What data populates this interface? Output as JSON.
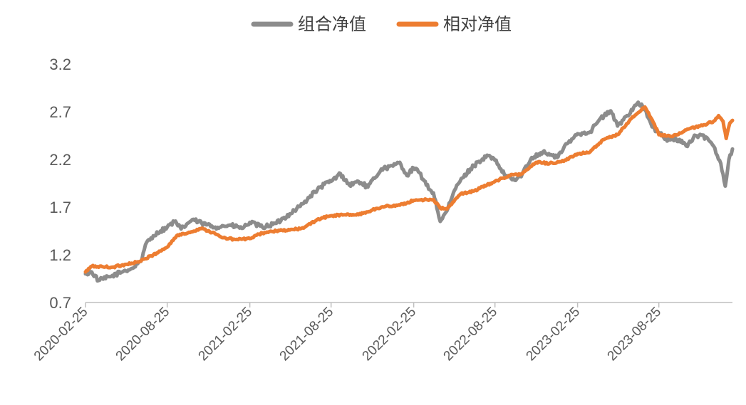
{
  "chart_data": {
    "type": "line",
    "title": "",
    "xlabel": "",
    "ylabel": "",
    "x_ticks": [
      "2020-02-25",
      "2020-08-25",
      "2021-02-25",
      "2021-08-25",
      "2022-02-25",
      "2022-08-25",
      "2023-02-25",
      "2023-08-25"
    ],
    "x_range": [
      "2020-02-25",
      "2024-02-05"
    ],
    "y_ticks": [
      "0.7",
      "1.2",
      "1.7",
      "2.2",
      "2.7",
      "3.2"
    ],
    "ylim": [
      0.7,
      3.2
    ],
    "grid": false,
    "legend_position": "top-center",
    "series": [
      {
        "name": "组合净值",
        "color": "#8c8c8c",
        "points": [
          [
            "2020-02-25",
            1.0
          ],
          [
            "2020-03-10",
            1.02
          ],
          [
            "2020-03-25",
            0.93
          ],
          [
            "2020-04-20",
            0.97
          ],
          [
            "2020-05-20",
            1.03
          ],
          [
            "2020-06-10",
            1.06
          ],
          [
            "2020-06-30",
            1.16
          ],
          [
            "2020-07-10",
            1.33
          ],
          [
            "2020-07-25",
            1.4
          ],
          [
            "2020-08-10",
            1.45
          ],
          [
            "2020-08-25",
            1.49
          ],
          [
            "2020-09-10",
            1.55
          ],
          [
            "2020-09-25",
            1.47
          ],
          [
            "2020-10-20",
            1.57
          ],
          [
            "2020-11-10",
            1.53
          ],
          [
            "2020-12-10",
            1.49
          ],
          [
            "2021-01-10",
            1.51
          ],
          [
            "2021-02-10",
            1.48
          ],
          [
            "2021-02-25",
            1.54
          ],
          [
            "2021-03-25",
            1.49
          ],
          [
            "2021-04-25",
            1.53
          ],
          [
            "2021-05-25",
            1.63
          ],
          [
            "2021-06-25",
            1.74
          ],
          [
            "2021-07-10",
            1.82
          ],
          [
            "2021-08-10",
            1.94
          ],
          [
            "2021-08-25",
            1.97
          ],
          [
            "2021-09-15",
            2.05
          ],
          [
            "2021-10-05",
            1.93
          ],
          [
            "2021-10-25",
            1.97
          ],
          [
            "2021-11-15",
            1.91
          ],
          [
            "2021-12-15",
            2.1
          ],
          [
            "2022-01-10",
            2.13
          ],
          [
            "2022-01-25",
            2.17
          ],
          [
            "2022-02-10",
            2.03
          ],
          [
            "2022-02-25",
            2.11
          ],
          [
            "2022-03-10",
            2.06
          ],
          [
            "2022-03-25",
            1.93
          ],
          [
            "2022-04-10",
            1.85
          ],
          [
            "2022-04-25",
            1.55
          ],
          [
            "2022-05-10",
            1.66
          ],
          [
            "2022-06-01",
            1.93
          ],
          [
            "2022-07-01",
            2.1
          ],
          [
            "2022-07-20",
            2.18
          ],
          [
            "2022-08-10",
            2.24
          ],
          [
            "2022-08-25",
            2.19
          ],
          [
            "2022-09-15",
            2.04
          ],
          [
            "2022-10-10",
            1.98
          ],
          [
            "2022-10-25",
            2.05
          ],
          [
            "2022-11-15",
            2.22
          ],
          [
            "2022-12-10",
            2.28
          ],
          [
            "2023-01-10",
            2.22
          ],
          [
            "2023-01-25",
            2.32
          ],
          [
            "2023-02-25",
            2.47
          ],
          [
            "2023-03-25",
            2.49
          ],
          [
            "2023-04-15",
            2.62
          ],
          [
            "2023-05-10",
            2.71
          ],
          [
            "2023-05-25",
            2.55
          ],
          [
            "2023-06-15",
            2.66
          ],
          [
            "2023-07-10",
            2.8
          ],
          [
            "2023-07-25",
            2.72
          ],
          [
            "2023-08-10",
            2.54
          ],
          [
            "2023-08-25",
            2.48
          ],
          [
            "2023-09-15",
            2.4
          ],
          [
            "2023-10-10",
            2.41
          ],
          [
            "2023-10-25",
            2.34
          ],
          [
            "2023-11-15",
            2.45
          ],
          [
            "2023-12-10",
            2.43
          ],
          [
            "2023-12-25",
            2.34
          ],
          [
            "2024-01-10",
            2.16
          ],
          [
            "2024-01-20",
            1.92
          ],
          [
            "2024-01-28",
            2.2
          ],
          [
            "2024-02-05",
            2.31
          ]
        ]
      },
      {
        "name": "相对净值",
        "color": "#ed7d31",
        "points": [
          [
            "2020-02-25",
            1.02
          ],
          [
            "2020-03-10",
            1.08
          ],
          [
            "2020-04-25",
            1.07
          ],
          [
            "2020-05-25",
            1.1
          ],
          [
            "2020-06-25",
            1.13
          ],
          [
            "2020-07-25",
            1.2
          ],
          [
            "2020-08-25",
            1.28
          ],
          [
            "2020-09-15",
            1.4
          ],
          [
            "2020-10-10",
            1.43
          ],
          [
            "2020-11-10",
            1.48
          ],
          [
            "2020-12-10",
            1.42
          ],
          [
            "2020-12-25",
            1.38
          ],
          [
            "2021-01-25",
            1.36
          ],
          [
            "2021-02-25",
            1.37
          ],
          [
            "2021-03-25",
            1.43
          ],
          [
            "2021-04-25",
            1.45
          ],
          [
            "2021-05-25",
            1.46
          ],
          [
            "2021-06-25",
            1.48
          ],
          [
            "2021-07-25",
            1.57
          ],
          [
            "2021-08-25",
            1.61
          ],
          [
            "2021-09-25",
            1.62
          ],
          [
            "2021-10-25",
            1.62
          ],
          [
            "2021-11-25",
            1.67
          ],
          [
            "2021-12-25",
            1.71
          ],
          [
            "2022-01-25",
            1.72
          ],
          [
            "2022-02-25",
            1.77
          ],
          [
            "2022-03-25",
            1.78
          ],
          [
            "2022-04-10",
            1.78
          ],
          [
            "2022-04-25",
            1.69
          ],
          [
            "2022-05-10",
            1.68
          ],
          [
            "2022-06-10",
            1.84
          ],
          [
            "2022-07-10",
            1.87
          ],
          [
            "2022-08-25",
            1.97
          ],
          [
            "2022-09-25",
            2.03
          ],
          [
            "2022-10-25",
            2.05
          ],
          [
            "2022-11-25",
            2.17
          ],
          [
            "2022-12-25",
            2.16
          ],
          [
            "2023-01-25",
            2.18
          ],
          [
            "2023-02-25",
            2.26
          ],
          [
            "2023-03-25",
            2.28
          ],
          [
            "2023-04-25",
            2.41
          ],
          [
            "2023-05-25",
            2.46
          ],
          [
            "2023-06-25",
            2.63
          ],
          [
            "2023-07-25",
            2.75
          ],
          [
            "2023-08-15",
            2.57
          ],
          [
            "2023-08-25",
            2.46
          ],
          [
            "2023-09-25",
            2.44
          ],
          [
            "2023-10-25",
            2.51
          ],
          [
            "2023-11-25",
            2.55
          ],
          [
            "2023-12-25",
            2.6
          ],
          [
            "2024-01-05",
            2.66
          ],
          [
            "2024-01-15",
            2.6
          ],
          [
            "2024-01-22",
            2.42
          ],
          [
            "2024-01-30",
            2.58
          ],
          [
            "2024-02-05",
            2.61
          ]
        ]
      }
    ]
  }
}
